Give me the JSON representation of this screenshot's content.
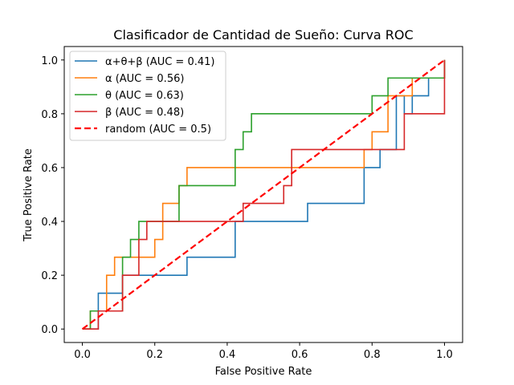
{
  "chart_data": {
    "type": "line",
    "title": "Clasificador de Cantidad de Sueño: Curva ROC",
    "xlabel": "False Positive Rate",
    "ylabel": "True Positive Rate",
    "xlim": [
      -0.05,
      1.05
    ],
    "ylim": [
      -0.05,
      1.05
    ],
    "xticks": [
      0.0,
      0.2,
      0.4,
      0.6,
      0.8,
      1.0
    ],
    "yticks": [
      0.0,
      0.2,
      0.4,
      0.6,
      0.8,
      1.0
    ],
    "xtick_labels": [
      "0.0",
      "0.2",
      "0.4",
      "0.6",
      "0.8",
      "1.0"
    ],
    "ytick_labels": [
      "0.0",
      "0.2",
      "0.4",
      "0.6",
      "0.8",
      "1.0"
    ],
    "grid": false,
    "legend_position": "upper-left",
    "series": [
      {
        "name": "α+θ+β (AUC = 0.41)",
        "color": "#1f77b4",
        "dash": "solid",
        "x": [
          0.0,
          0.044,
          0.044,
          0.111,
          0.111,
          0.289,
          0.289,
          0.422,
          0.422,
          0.622,
          0.622,
          0.778,
          0.778,
          0.822,
          0.822,
          0.867,
          0.867,
          0.889,
          0.889,
          0.911,
          0.911,
          0.956,
          0.956,
          1.0,
          1.0
        ],
        "y": [
          0.0,
          0.0,
          0.133,
          0.133,
          0.2,
          0.2,
          0.267,
          0.267,
          0.4,
          0.4,
          0.467,
          0.467,
          0.6,
          0.6,
          0.667,
          0.667,
          0.867,
          0.867,
          0.8,
          0.8,
          0.867,
          0.867,
          0.933,
          0.933,
          1.0
        ]
      },
      {
        "name": "α (AUC = 0.56)",
        "color": "#ff7f0e",
        "dash": "solid",
        "x": [
          0.0,
          0.022,
          0.022,
          0.067,
          0.067,
          0.089,
          0.089,
          0.2,
          0.2,
          0.222,
          0.222,
          0.267,
          0.267,
          0.289,
          0.289,
          0.778,
          0.778,
          0.8,
          0.8,
          0.844,
          0.844,
          0.867,
          0.867,
          0.911,
          0.911,
          1.0,
          1.0
        ],
        "y": [
          0.0,
          0.0,
          0.067,
          0.067,
          0.2,
          0.2,
          0.267,
          0.267,
          0.333,
          0.333,
          0.467,
          0.467,
          0.533,
          0.533,
          0.6,
          0.6,
          0.667,
          0.667,
          0.733,
          0.733,
          0.867,
          0.867,
          0.867,
          0.867,
          0.933,
          0.933,
          1.0
        ]
      },
      {
        "name": "θ (AUC = 0.63)",
        "color": "#2ca02c",
        "dash": "solid",
        "x": [
          0.0,
          0.022,
          0.022,
          0.111,
          0.111,
          0.133,
          0.133,
          0.156,
          0.156,
          0.267,
          0.267,
          0.422,
          0.422,
          0.444,
          0.444,
          0.467,
          0.467,
          0.8,
          0.8,
          0.844,
          0.844,
          0.911,
          0.911,
          1.0,
          1.0
        ],
        "y": [
          0.0,
          0.0,
          0.067,
          0.067,
          0.267,
          0.267,
          0.333,
          0.333,
          0.4,
          0.4,
          0.533,
          0.533,
          0.667,
          0.667,
          0.733,
          0.733,
          0.8,
          0.8,
          0.867,
          0.867,
          0.933,
          0.933,
          0.933,
          0.933,
          1.0
        ]
      },
      {
        "name": "β (AUC = 0.48)",
        "color": "#d62728",
        "dash": "solid",
        "x": [
          0.0,
          0.044,
          0.044,
          0.067,
          0.067,
          0.111,
          0.111,
          0.156,
          0.156,
          0.178,
          0.178,
          0.444,
          0.444,
          0.556,
          0.556,
          0.578,
          0.578,
          0.889,
          0.889,
          0.911,
          0.911,
          1.0,
          1.0
        ],
        "y": [
          0.0,
          0.0,
          0.067,
          0.067,
          0.067,
          0.067,
          0.2,
          0.2,
          0.333,
          0.333,
          0.4,
          0.4,
          0.467,
          0.467,
          0.533,
          0.533,
          0.667,
          0.667,
          0.8,
          0.8,
          0.8,
          0.8,
          1.0
        ]
      },
      {
        "name": "random (AUC = 0.5)",
        "color": "#ff0000",
        "dash": "dashed",
        "x": [
          0.0,
          1.0
        ],
        "y": [
          0.0,
          1.0
        ]
      }
    ]
  }
}
